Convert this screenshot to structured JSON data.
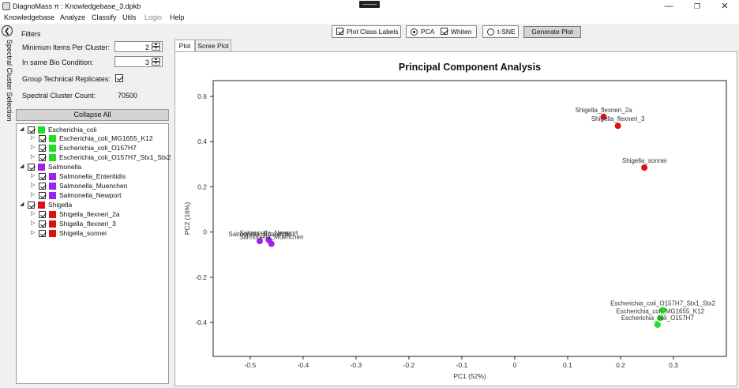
{
  "window": {
    "title": "DiagnoMass π : Knowledgebase_3.dpkb"
  },
  "menu": [
    {
      "label": "Knowledgebase",
      "enabled": true
    },
    {
      "label": "Analyze",
      "enabled": true
    },
    {
      "label": "Classify",
      "enabled": true
    },
    {
      "label": "Utils",
      "enabled": true
    },
    {
      "label": "Login",
      "enabled": false
    },
    {
      "label": "Help",
      "enabled": true
    }
  ],
  "sidebar": {
    "vertical_label": "Spectral Cluster Selection"
  },
  "filters": {
    "title": "Filters",
    "min_items_label": "Minimum Items Per Cluster:",
    "min_items_value": "2",
    "bio_condition_label": "In same Bio Condition:",
    "bio_condition_value": "3",
    "group_replicates_label": "Group Technical Replicates:",
    "group_replicates_checked": true,
    "cluster_count_label": "Spectral Cluster Count:",
    "cluster_count_value": "70500"
  },
  "collapse_all_label": "Collapse All",
  "tree": [
    {
      "label": "Escherichia_coli",
      "color": "#22dd22",
      "level": 0
    },
    {
      "label": "Escherichia_coli_MG1655_K12",
      "color": "#22dd22",
      "level": 1
    },
    {
      "label": "Escherichia_coli_O157H7",
      "color": "#22dd22",
      "level": 1
    },
    {
      "label": "Escherichia_coli_O157H7_Stx1_Stx2",
      "color": "#22dd22",
      "level": 1
    },
    {
      "label": "Salmonella",
      "color": "#a020f0",
      "level": 0
    },
    {
      "label": "Salmonella_Enteritidis",
      "color": "#a020f0",
      "level": 1
    },
    {
      "label": "Salmonella_Muenchen",
      "color": "#a020f0",
      "level": 1
    },
    {
      "label": "Salmonella_Newport",
      "color": "#a020f0",
      "level": 1
    },
    {
      "label": "Shigella",
      "color": "#dd1111",
      "level": 0
    },
    {
      "label": "Shigella_flexneri_2a",
      "color": "#dd1111",
      "level": 1
    },
    {
      "label": "Shigella_flexneri_3",
      "color": "#dd1111",
      "level": 1
    },
    {
      "label": "Shigella_sonnei",
      "color": "#dd1111",
      "level": 1
    }
  ],
  "toolbar": {
    "plot_class_labels": "Plot Class Labels",
    "pca": "PCA",
    "whiten": "Whiten",
    "tsne": "t-SNE",
    "generate_plot": "Generate Plot"
  },
  "tabs": [
    {
      "label": "Plot",
      "active": true
    },
    {
      "label": "Scree Plot",
      "active": false
    }
  ],
  "chart_data": {
    "type": "scatter",
    "title": "Principal Component Analysis",
    "xlabel": "PC1 (52%)",
    "ylabel": "PC2 (16%)",
    "xlim": [
      -0.57,
      0.4
    ],
    "ylim": [
      -0.55,
      0.67
    ],
    "xticks": [
      -0.5,
      -0.4,
      -0.3,
      -0.2,
      -0.1,
      0,
      0.1,
      0.2,
      0.3
    ],
    "yticks": [
      -0.4,
      -0.2,
      0,
      0.2,
      0.4,
      0.6
    ],
    "grid": false,
    "points": [
      {
        "label": "Shigella_flexneri_2a",
        "x": 0.168,
        "y": 0.51,
        "color": "#dd1111"
      },
      {
        "label": "Shigella_flexneri_3",
        "x": 0.195,
        "y": 0.47,
        "color": "#dd1111"
      },
      {
        "label": "Shigella_sonnei",
        "x": 0.245,
        "y": 0.285,
        "color": "#dd1111"
      },
      {
        "label": "Salmonella_Newport",
        "x": -0.465,
        "y": -0.035,
        "color": "#a020f0"
      },
      {
        "label": "Salmonella_Enteritidis",
        "x": -0.482,
        "y": -0.04,
        "color": "#a020f0"
      },
      {
        "label": "Salmonella_Muenchen",
        "x": -0.46,
        "y": -0.052,
        "color": "#a020f0"
      },
      {
        "label": "Escherichia_coli_O157H7_Stx1_Stx2",
        "x": 0.28,
        "y": -0.345,
        "color": "#22dd22"
      },
      {
        "label": "Escherichia_coli_MG1655_K12",
        "x": 0.275,
        "y": -0.38,
        "color": "#22dd22"
      },
      {
        "label": "Escherichia_coli_O157H7",
        "x": 0.27,
        "y": -0.41,
        "color": "#22dd22"
      }
    ]
  }
}
